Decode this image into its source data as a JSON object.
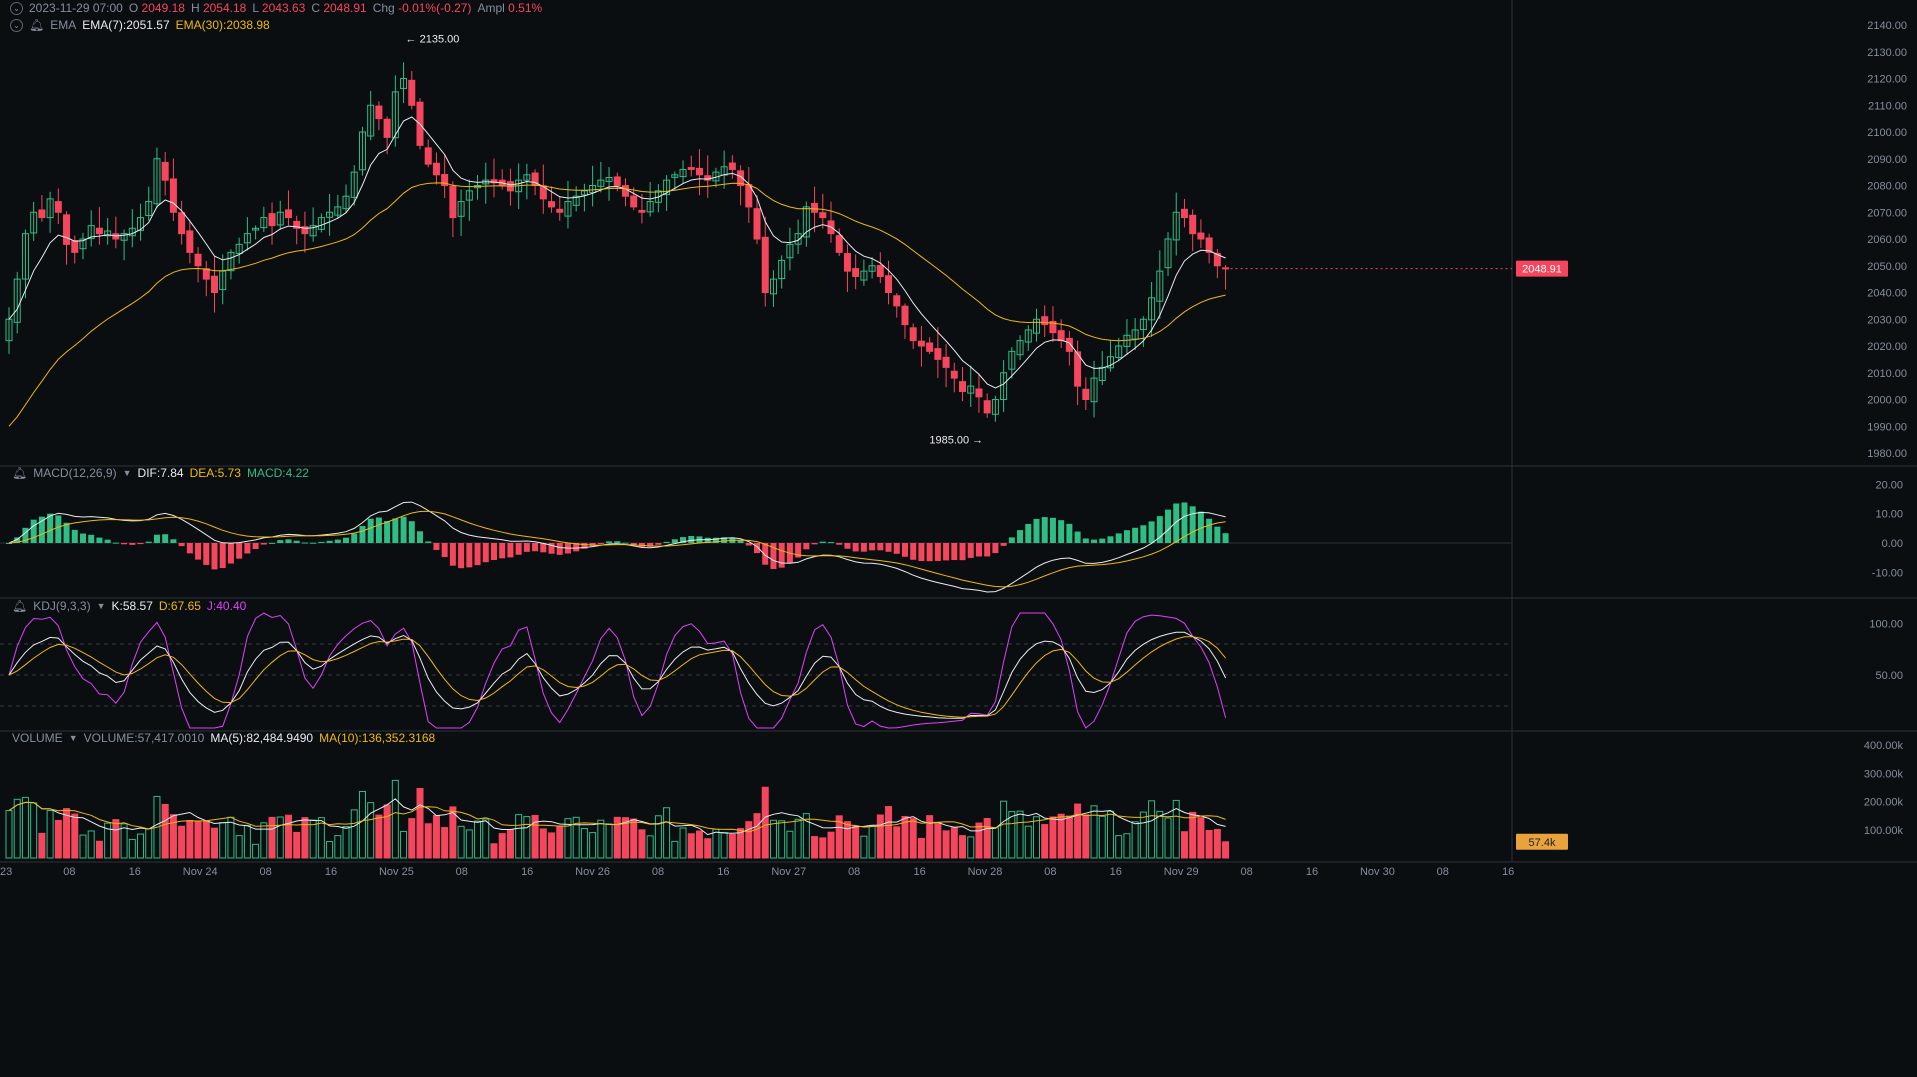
{
  "header": {
    "time": "2023-11-29 07:00",
    "open_label": "O",
    "open": "2049.18",
    "high_label": "H",
    "high": "2054.18",
    "low_label": "L",
    "low": "2043.63",
    "close_label": "C",
    "close": "2048.91",
    "chg_label": "Chg",
    "chg": "-0.01%(-0.27)",
    "ampl_label": "Ampl",
    "ampl": "0.51%"
  },
  "ema": {
    "name": "EMA",
    "ema7": "EMA(7):2051.57",
    "ema30": "EMA(30):2038.98"
  },
  "macd": {
    "name": "MACD(12,26,9)",
    "dif": "DIF:7.84",
    "dea": "DEA:5.73",
    "macd": "MACD:4.22"
  },
  "kdj": {
    "name": "KDJ(9,3,3)",
    "k": "K:58.57",
    "d": "D:67.65",
    "j": "J:40.40"
  },
  "volume": {
    "name": "VOLUME",
    "volume": "VOLUME:57,417.0010",
    "ma5": "MA(5):82,484.9490",
    "ma10": "MA(10):136,352.3168"
  },
  "price_axis": [
    "2140.00",
    "2130.00",
    "2120.00",
    "2110.00",
    "2100.00",
    "2090.00",
    "2080.00",
    "2070.00",
    "2060.00",
    "2050.00",
    "2040.00",
    "2030.00",
    "2020.00",
    "2010.00",
    "2000.00",
    "1990.00",
    "1980.00"
  ],
  "macd_axis": [
    "20.00",
    "10.00",
    "0.00",
    "-10.00"
  ],
  "kdj_axis": [
    "100.00",
    "50.00"
  ],
  "volume_axis": [
    "400.00k",
    "300.00k",
    "200.00k",
    "100.00k"
  ],
  "time_axis": [
    "23",
    "08",
    "16",
    "Nov 24",
    "08",
    "16",
    "Nov 25",
    "08",
    "16",
    "Nov 26",
    "08",
    "16",
    "Nov 27",
    "08",
    "16",
    "Nov 28",
    "08",
    "16",
    "Nov 29",
    "08",
    "16",
    "Nov 30",
    "08",
    "16"
  ],
  "annotations": {
    "high": "← 2135.00",
    "low": "1985.00 →"
  },
  "last_price_tag": "2048.91",
  "last_volume_tag": "57.4k",
  "colors": {
    "up": "#2ebd85",
    "down": "#f6465d",
    "ema7": "#eaecef",
    "ema30": "#f0b90b",
    "kdj_j": "#e040fb",
    "bg": "#0b0e11",
    "grid": "#1e2329"
  },
  "chart_data": {
    "type": "candlestick",
    "x_range": [
      "2023-11-23 ~05:00",
      "2023-11-29 07:00"
    ],
    "interval": "1h",
    "price_ylim": [
      1980,
      2140
    ],
    "approx_closes": [
      2030,
      2045,
      2062,
      2070,
      2068,
      2075,
      2070,
      2058,
      2055,
      2060,
      2065,
      2062,
      2063,
      2060,
      2062,
      2064,
      2068,
      2074,
      2090,
      2082,
      2070,
      2062,
      2055,
      2050,
      2045,
      2040,
      2048,
      2055,
      2058,
      2062,
      2064,
      2068,
      2065,
      2070,
      2068,
      2064,
      2062,
      2065,
      2068,
      2070,
      2072,
      2076,
      2085,
      2100,
      2110,
      2105,
      2098,
      2115,
      2120,
      2110,
      2095,
      2088,
      2084,
      2080,
      2068,
      2074,
      2078,
      2080,
      2082,
      2081,
      2080,
      2078,
      2082,
      2084,
      2080,
      2075,
      2072,
      2070,
      2074,
      2076,
      2078,
      2080,
      2082,
      2083,
      2080,
      2076,
      2072,
      2070,
      2074,
      2078,
      2082,
      2084,
      2086,
      2086,
      2084,
      2082,
      2085,
      2087,
      2086,
      2080,
      2072,
      2060,
      2040,
      2045,
      2052,
      2058,
      2062,
      2072,
      2070,
      2068,
      2062,
      2055,
      2048,
      2046,
      2048,
      2050,
      2046,
      2040,
      2035,
      2028,
      2022,
      2020,
      2018,
      2015,
      2012,
      2008,
      2003,
      2005,
      2001,
      1995,
      2000,
      2010,
      2018,
      2022,
      2026,
      2030,
      2028,
      2025,
      2022,
      2018,
      2005,
      2000,
      2008,
      2012,
      2016,
      2020,
      2024,
      2026,
      2030,
      2038,
      2048,
      2060,
      2070,
      2068,
      2062,
      2060,
      2055,
      2050,
      2049
    ],
    "price_high": 2135.0,
    "price_low": 1985.0,
    "last_close": 2048.91,
    "ema7_last": 2051.57,
    "ema30_last": 2038.98,
    "macd": {
      "dif": 7.84,
      "dea": 5.73,
      "macd": 4.22,
      "ylim": [
        -15,
        25
      ]
    },
    "kdj": {
      "k": 58.57,
      "d": 67.65,
      "j": 40.4,
      "ylim": [
        0,
        110
      ]
    },
    "volume": {
      "last": 57417.001,
      "ma5": 82484.949,
      "ma10": 136352.3168,
      "ylim": [
        0,
        400000
      ]
    }
  }
}
